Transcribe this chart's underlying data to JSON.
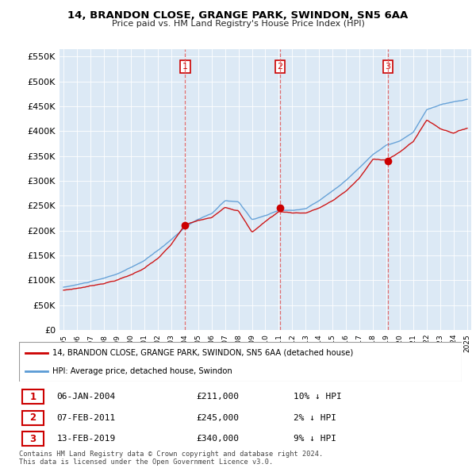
{
  "title": "14, BRANDON CLOSE, GRANGE PARK, SWINDON, SN5 6AA",
  "subtitle": "Price paid vs. HM Land Registry's House Price Index (HPI)",
  "ylabel_ticks": [
    "£0",
    "£50K",
    "£100K",
    "£150K",
    "£200K",
    "£250K",
    "£300K",
    "£350K",
    "£400K",
    "£450K",
    "£500K",
    "£550K"
  ],
  "ytick_values": [
    0,
    50000,
    100000,
    150000,
    200000,
    250000,
    300000,
    350000,
    400000,
    450000,
    500000,
    550000
  ],
  "background_color": "#dce9f5",
  "legend_entry1": "14, BRANDON CLOSE, GRANGE PARK, SWINDON, SN5 6AA (detached house)",
  "legend_entry2": "HPI: Average price, detached house, Swindon",
  "transactions": [
    {
      "num": 1,
      "date": "06-JAN-2004",
      "price": "£211,000",
      "hpi_diff": "10% ↓ HPI",
      "year": 2004.03
    },
    {
      "num": 2,
      "date": "07-FEB-2011",
      "price": "£245,000",
      "hpi_diff": "2% ↓ HPI",
      "year": 2011.1
    },
    {
      "num": 3,
      "date": "13-FEB-2019",
      "price": "£340,000",
      "hpi_diff": "9% ↓ HPI",
      "year": 2019.1
    }
  ],
  "trans_prices": [
    211000,
    245000,
    340000
  ],
  "copyright_text": "Contains HM Land Registry data © Crown copyright and database right 2024.\nThis data is licensed under the Open Government Licence v3.0.",
  "red_line_color": "#cc0000",
  "blue_line_color": "#5b9bd5",
  "vline_color": "#e06060"
}
